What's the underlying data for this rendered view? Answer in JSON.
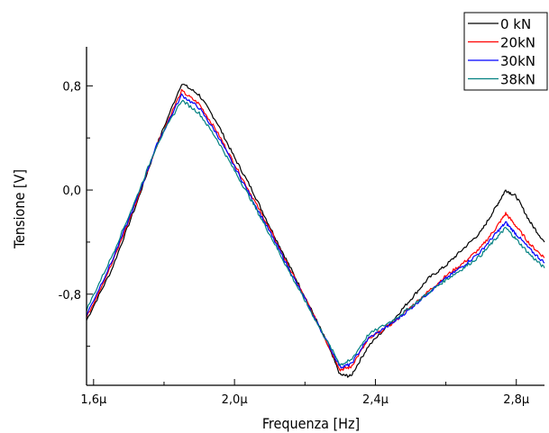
{
  "chart_data": {
    "type": "line",
    "title": "",
    "xlabel": "Frequenza [Hz]",
    "ylabel": "Tensione [V]",
    "xlim": [
      1.58,
      2.88
    ],
    "ylim": [
      -1.5,
      1.1
    ],
    "x_ticks": [
      {
        "value": 1.6,
        "label": "1,6μ"
      },
      {
        "value": 2.0,
        "label": "2,0μ"
      },
      {
        "value": 2.4,
        "label": "2,4μ"
      },
      {
        "value": 2.8,
        "label": "2,8μ"
      }
    ],
    "y_ticks": [
      {
        "value": 0.8,
        "label": "0,8"
      },
      {
        "value": 0.0,
        "label": "0,0"
      },
      {
        "value": -0.8,
        "label": "-0,8"
      }
    ],
    "legend_position": "top-right",
    "grid": false,
    "series": [
      {
        "name": "0 kN",
        "color": "#000000",
        "x": [
          1.58,
          1.65,
          1.72,
          1.78,
          1.85,
          1.9,
          1.95,
          2.0,
          2.05,
          2.1,
          2.15,
          2.2,
          2.25,
          2.3,
          2.33,
          2.38,
          2.45,
          2.5,
          2.55,
          2.6,
          2.65,
          2.7,
          2.74,
          2.77,
          2.8,
          2.84,
          2.88
        ],
        "y": [
          -1.0,
          -0.62,
          -0.12,
          0.35,
          0.82,
          0.73,
          0.52,
          0.25,
          0.0,
          -0.28,
          -0.55,
          -0.82,
          -1.1,
          -1.42,
          -1.43,
          -1.2,
          -1.0,
          -0.84,
          -0.68,
          -0.58,
          -0.45,
          -0.32,
          -0.14,
          0.0,
          -0.05,
          -0.25,
          -0.4
        ]
      },
      {
        "name": "20kN",
        "color": "#ff0000",
        "x": [
          1.58,
          1.65,
          1.72,
          1.78,
          1.85,
          1.9,
          1.95,
          2.0,
          2.05,
          2.1,
          2.15,
          2.2,
          2.25,
          2.3,
          2.33,
          2.38,
          2.45,
          2.5,
          2.55,
          2.6,
          2.65,
          2.7,
          2.74,
          2.77,
          2.8,
          2.84,
          2.88
        ],
        "y": [
          -0.98,
          -0.58,
          -0.1,
          0.35,
          0.76,
          0.66,
          0.45,
          0.2,
          -0.05,
          -0.3,
          -0.57,
          -0.83,
          -1.1,
          -1.38,
          -1.36,
          -1.15,
          -1.02,
          -0.9,
          -0.78,
          -0.66,
          -0.56,
          -0.44,
          -0.3,
          -0.18,
          -0.28,
          -0.42,
          -0.52
        ]
      },
      {
        "name": "30kN",
        "color": "#0000ff",
        "x": [
          1.58,
          1.65,
          1.72,
          1.78,
          1.85,
          1.9,
          1.95,
          2.0,
          2.05,
          2.1,
          2.15,
          2.2,
          2.25,
          2.3,
          2.33,
          2.38,
          2.45,
          2.5,
          2.55,
          2.6,
          2.65,
          2.7,
          2.74,
          2.77,
          2.8,
          2.84,
          2.88
        ],
        "y": [
          -0.96,
          -0.56,
          -0.09,
          0.35,
          0.73,
          0.63,
          0.43,
          0.18,
          -0.07,
          -0.32,
          -0.58,
          -0.84,
          -1.1,
          -1.36,
          -1.34,
          -1.14,
          -1.02,
          -0.91,
          -0.79,
          -0.68,
          -0.58,
          -0.47,
          -0.34,
          -0.25,
          -0.34,
          -0.46,
          -0.56
        ]
      },
      {
        "name": "38kN",
        "color": "#008080",
        "x": [
          1.58,
          1.65,
          1.72,
          1.78,
          1.85,
          1.9,
          1.95,
          2.0,
          2.05,
          2.1,
          2.15,
          2.2,
          2.25,
          2.3,
          2.33,
          2.38,
          2.45,
          2.5,
          2.55,
          2.6,
          2.65,
          2.7,
          2.74,
          2.77,
          2.8,
          2.84,
          2.88
        ],
        "y": [
          -0.92,
          -0.52,
          -0.07,
          0.35,
          0.69,
          0.59,
          0.39,
          0.15,
          -0.09,
          -0.34,
          -0.6,
          -0.85,
          -1.1,
          -1.34,
          -1.31,
          -1.11,
          -1.0,
          -0.9,
          -0.79,
          -0.69,
          -0.6,
          -0.5,
          -0.38,
          -0.29,
          -0.38,
          -0.5,
          -0.6
        ]
      }
    ]
  }
}
